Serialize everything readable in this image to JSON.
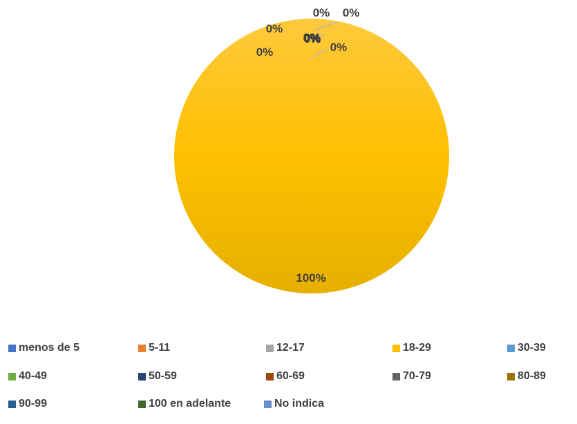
{
  "chart_data": {
    "type": "pie",
    "categories": [
      "menos de 5",
      "5-11",
      "12-17",
      "18-29",
      "30-39",
      "40-49",
      "50-59",
      "60-69",
      "70-79",
      "80-89",
      "90-99",
      "100 en adelante",
      "No indica"
    ],
    "values": [
      0,
      0,
      0,
      100,
      0,
      0,
      0,
      0,
      0,
      0,
      0,
      0,
      0
    ],
    "data_labels": [
      "0%",
      "0%",
      "0%",
      "100%",
      "0%",
      "0%",
      "0%",
      "0%",
      "0%",
      "0%",
      "0%",
      "0%",
      "0%"
    ],
    "colors": [
      "#4472c4",
      "#ed7d31",
      "#a5a5a5",
      "#ffc000",
      "#5b9bd5",
      "#70ad47",
      "#264478",
      "#9e480e",
      "#636363",
      "#997300",
      "#255e91",
      "#43682b",
      "#698ed0"
    ],
    "legend_position": "bottom",
    "title": ""
  }
}
